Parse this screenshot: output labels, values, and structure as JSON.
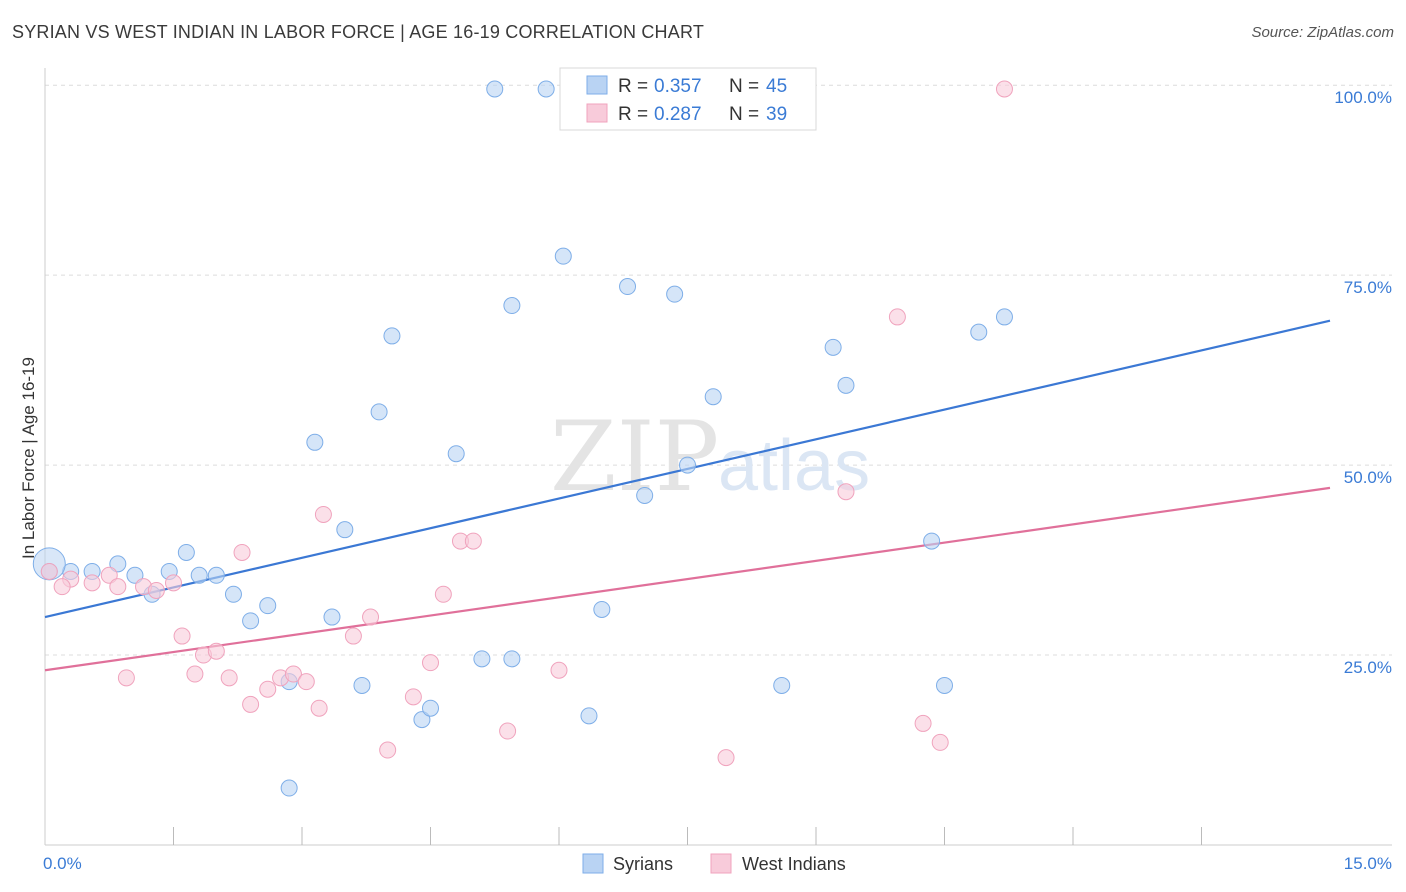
{
  "title": "SYRIAN VS WEST INDIAN IN LABOR FORCE | AGE 16-19 CORRELATION CHART",
  "source": "Source: ZipAtlas.com",
  "watermark": {
    "zip": "ZIP",
    "atlas": "atlas"
  },
  "chart_data": {
    "type": "scatter",
    "ylabel": "In Labor Force | Age 16-19",
    "xlim": [
      0,
      15
    ],
    "ylim": [
      0,
      102
    ],
    "x_tick_labels": [
      {
        "value": 0,
        "label": "0.0%"
      },
      {
        "value": 15,
        "label": "15.0%"
      }
    ],
    "x_minor_ticks": [
      1.5,
      3,
      4.5,
      6,
      7.5,
      9,
      10.5,
      12,
      13.5
    ],
    "y_ticks": [
      {
        "value": 25,
        "label": "25.0%"
      },
      {
        "value": 50,
        "label": "50.0%"
      },
      {
        "value": 75,
        "label": "75.0%"
      },
      {
        "value": 100,
        "label": "100.0%"
      }
    ],
    "grid": "horizontal dashed",
    "legend": {
      "placement": "top-center",
      "entries": [
        {
          "r_label": "R =",
          "r_value": "0.357",
          "n_label": "N =",
          "n_value": "45"
        },
        {
          "r_label": "R =",
          "r_value": "0.287",
          "n_label": "N =",
          "n_value": "39"
        }
      ]
    },
    "series": [
      {
        "name": "Syrians",
        "color": "#7eaee8",
        "fill": "#b9d3f3",
        "line_color": "#3b78d4",
        "trend": {
          "x0": 0,
          "y0": 30,
          "x1": 15,
          "y1": 69
        },
        "points": [
          [
            0.05,
            36
          ],
          [
            0.3,
            36
          ],
          [
            0.55,
            36
          ],
          [
            0.85,
            37
          ],
          [
            1.05,
            35.5
          ],
          [
            1.25,
            33
          ],
          [
            1.45,
            36
          ],
          [
            1.65,
            38.5
          ],
          [
            1.8,
            35.5
          ],
          [
            2.0,
            35.5
          ],
          [
            2.2,
            33
          ],
          [
            2.4,
            29.5
          ],
          [
            2.6,
            31.5
          ],
          [
            2.85,
            21.5
          ],
          [
            2.85,
            7.5
          ],
          [
            3.15,
            53
          ],
          [
            3.5,
            41.5
          ],
          [
            3.35,
            30
          ],
          [
            3.7,
            21
          ],
          [
            3.9,
            57
          ],
          [
            4.05,
            67
          ],
          [
            4.4,
            16.5
          ],
          [
            4.5,
            18
          ],
          [
            4.8,
            51.5
          ],
          [
            5.1,
            24.5
          ],
          [
            5.25,
            99.5
          ],
          [
            5.45,
            71
          ],
          [
            5.45,
            24.5
          ],
          [
            5.85,
            99.5
          ],
          [
            6.05,
            77.5
          ],
          [
            6.35,
            17
          ],
          [
            6.5,
            31
          ],
          [
            6.8,
            73.5
          ],
          [
            7.0,
            46
          ],
          [
            7.35,
            72.5
          ],
          [
            7.5,
            50
          ],
          [
            7.8,
            59
          ],
          [
            8.6,
            21
          ],
          [
            9.2,
            65.5
          ],
          [
            9.35,
            60.5
          ],
          [
            10.35,
            40
          ],
          [
            10.5,
            21
          ],
          [
            10.9,
            67.5
          ],
          [
            11.2,
            69.5
          ],
          [
            0.05,
            37
          ]
        ]
      },
      {
        "name": "West Indians",
        "color": "#f0a3bd",
        "fill": "#f8cbda",
        "line_color": "#e0709a",
        "trend": {
          "x0": 0,
          "y0": 23,
          "x1": 15,
          "y1": 47
        },
        "points": [
          [
            0.05,
            36
          ],
          [
            0.3,
            35
          ],
          [
            0.55,
            34.5
          ],
          [
            0.75,
            35.5
          ],
          [
            0.85,
            34
          ],
          [
            0.95,
            22
          ],
          [
            1.15,
            34
          ],
          [
            1.3,
            33.5
          ],
          [
            1.5,
            34.5
          ],
          [
            1.6,
            27.5
          ],
          [
            1.75,
            22.5
          ],
          [
            1.85,
            25
          ],
          [
            2.0,
            25.5
          ],
          [
            2.15,
            22
          ],
          [
            2.3,
            38.5
          ],
          [
            2.4,
            18.5
          ],
          [
            2.6,
            20.5
          ],
          [
            2.75,
            22
          ],
          [
            2.9,
            22.5
          ],
          [
            3.05,
            21.5
          ],
          [
            3.2,
            18
          ],
          [
            3.25,
            43.5
          ],
          [
            3.6,
            27.5
          ],
          [
            3.8,
            30
          ],
          [
            4.0,
            12.5
          ],
          [
            4.3,
            19.5
          ],
          [
            4.5,
            24
          ],
          [
            4.65,
            33
          ],
          [
            4.85,
            40
          ],
          [
            5.0,
            40
          ],
          [
            5.4,
            15
          ],
          [
            6.0,
            23
          ],
          [
            7.95,
            11.5
          ],
          [
            9.35,
            46.5
          ],
          [
            9.95,
            69.5
          ],
          [
            10.25,
            16
          ],
          [
            10.45,
            13.5
          ],
          [
            11.2,
            99.5
          ],
          [
            0.2,
            34
          ]
        ]
      }
    ]
  }
}
